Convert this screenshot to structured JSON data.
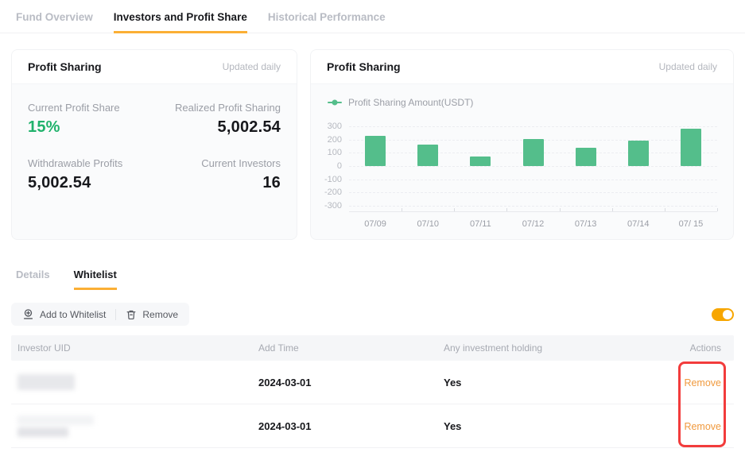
{
  "colors": {
    "accent": "#F7A600",
    "tab_underline": "#FBAF35",
    "green": "#20B26C",
    "bar_green": "#54BE8B",
    "remove_link": "#F09A3E",
    "highlight_red": "#F23C3C"
  },
  "top_tabs": {
    "items": [
      {
        "label": "Fund Overview",
        "active": false
      },
      {
        "label": "Investors and Profit Share",
        "active": true
      },
      {
        "label": "Historical Performance",
        "active": false
      }
    ]
  },
  "stats_card": {
    "title": "Profit Sharing",
    "updated": "Updated daily",
    "metrics": [
      {
        "label": "Current Profit Share",
        "value": "15%"
      },
      {
        "label": "Realized Profit Sharing",
        "value": "5,002.54"
      },
      {
        "label": "Withdrawable Profits",
        "value": "5,002.54"
      },
      {
        "label": "Current Investors",
        "value": "16"
      }
    ]
  },
  "chart_card": {
    "title": "Profit Sharing",
    "updated": "Updated daily",
    "legend": "Profit Sharing Amount(USDT)"
  },
  "chart_data": {
    "type": "bar",
    "title": "Profit Sharing",
    "series_name": "Profit Sharing Amount(USDT)",
    "categories": [
      "07/09",
      "07/10",
      "07/11",
      "07/12",
      "07/13",
      "07/14",
      "07/ 15"
    ],
    "values": [
      230,
      160,
      70,
      205,
      140,
      195,
      280
    ],
    "ylim": [
      -300,
      300
    ],
    "yticks": [
      300,
      200,
      100,
      0,
      -100,
      -200,
      -300
    ],
    "grid": true,
    "legend_position": "top-left",
    "bar_color": "#54BE8B"
  },
  "lower_tabs": {
    "items": [
      {
        "label": "Details",
        "active": false
      },
      {
        "label": "Whitelist",
        "active": true
      }
    ]
  },
  "toolbar": {
    "add_label": "Add to Whitelist",
    "remove_label": "Remove",
    "toggle_on": true
  },
  "table": {
    "headers": [
      "Investor UID",
      "Add Time",
      "Any investment holding",
      "Actions"
    ],
    "rows": [
      {
        "uid": "(redacted)",
        "add_time": "2024-03-01",
        "holding": "Yes",
        "action": "Remove"
      },
      {
        "uid": "(redacted)",
        "add_time": "2024-03-01",
        "holding": "Yes",
        "action": "Remove"
      }
    ]
  }
}
